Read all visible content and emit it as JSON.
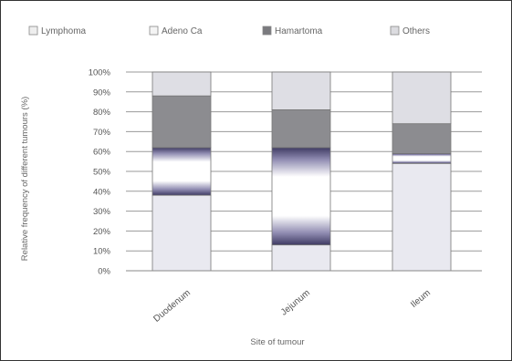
{
  "chart_data": {
    "type": "bar",
    "stacked": true,
    "categories": [
      "Duodenum",
      "Jejunum",
      "Ileum"
    ],
    "series": [
      {
        "name": "Lymphoma",
        "values": [
          38,
          13,
          54
        ]
      },
      {
        "name": "Adeno Ca",
        "values": [
          24,
          49,
          5
        ]
      },
      {
        "name": "Hamartoma",
        "values": [
          26,
          19,
          15
        ]
      },
      {
        "name": "Others",
        "values": [
          12,
          19,
          26
        ]
      }
    ],
    "y_ticks": [
      "0%",
      "10%",
      "20%",
      "30%",
      "40%",
      "50%",
      "60%",
      "70%",
      "80%",
      "90%",
      "100%"
    ],
    "ylim": [
      0,
      100
    ],
    "xlabel": "Site of tumour",
    "ylabel": "Relative frequency of different tumours (%)",
    "legend_position": "top",
    "grid": true,
    "colors": {
      "Lymphoma": "#e9e9f0",
      "Adeno Ca": "#ffffff",
      "Hamartoma": "#8c8c90",
      "Others": "#dedee4",
      "adeno_band": "#6a6790",
      "grid": "#9a9a9a",
      "bar_border": "#777777"
    }
  }
}
